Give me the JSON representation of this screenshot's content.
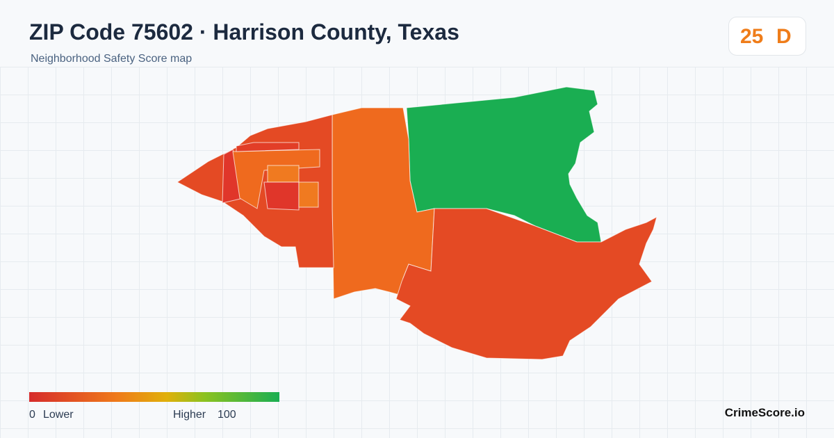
{
  "header": {
    "title": "ZIP Code 75602 · Harrison County, Texas",
    "subtitle": "Neighborhood Safety Score map"
  },
  "badge": {
    "score": 25,
    "grade": "D"
  },
  "legend": {
    "min": 0,
    "min_label": "Lower",
    "max_label": "Higher",
    "max": 100
  },
  "brand": "CrimeScore.io"
}
